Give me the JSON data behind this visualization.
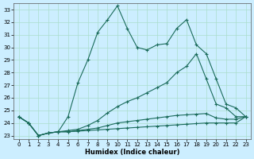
{
  "xlabel": "Humidex (Indice chaleur)",
  "xlim": [
    -0.5,
    23.5
  ],
  "ylim": [
    22.7,
    33.5
  ],
  "yticks": [
    23,
    24,
    25,
    26,
    27,
    28,
    29,
    30,
    31,
    32,
    33
  ],
  "xticks": [
    0,
    1,
    2,
    3,
    4,
    5,
    6,
    7,
    8,
    9,
    10,
    11,
    12,
    13,
    14,
    15,
    16,
    17,
    18,
    19,
    20,
    21,
    22,
    23
  ],
  "bg_color": "#cceeff",
  "grid_color": "#aaddcc",
  "line_color": "#1a6b5a",
  "series1": [
    24.5,
    24.0,
    23.0,
    23.2,
    23.3,
    24.5,
    27.2,
    29.0,
    31.2,
    32.2,
    33.3,
    31.5,
    30.0,
    29.8,
    30.2,
    30.3,
    31.5,
    32.2,
    30.2,
    29.5,
    27.5,
    25.5,
    25.2,
    24.5
  ],
  "series2": [
    24.5,
    24.0,
    23.0,
    23.2,
    23.3,
    23.4,
    23.5,
    23.8,
    24.2,
    24.8,
    25.3,
    25.7,
    26.0,
    26.4,
    26.8,
    27.2,
    28.0,
    28.5,
    29.5,
    27.5,
    25.5,
    25.2,
    24.5,
    24.5
  ],
  "series3": [
    24.5,
    24.0,
    23.0,
    23.2,
    23.3,
    23.3,
    23.4,
    23.5,
    23.6,
    23.8,
    24.0,
    24.1,
    24.2,
    24.3,
    24.4,
    24.5,
    24.6,
    24.65,
    24.7,
    24.75,
    24.4,
    24.3,
    24.3,
    24.5
  ],
  "series4": [
    24.5,
    24.0,
    23.0,
    23.2,
    23.3,
    23.3,
    23.35,
    23.4,
    23.45,
    23.5,
    23.55,
    23.6,
    23.65,
    23.7,
    23.75,
    23.8,
    23.85,
    23.9,
    23.95,
    24.0,
    24.0,
    24.0,
    24.0,
    24.5
  ]
}
